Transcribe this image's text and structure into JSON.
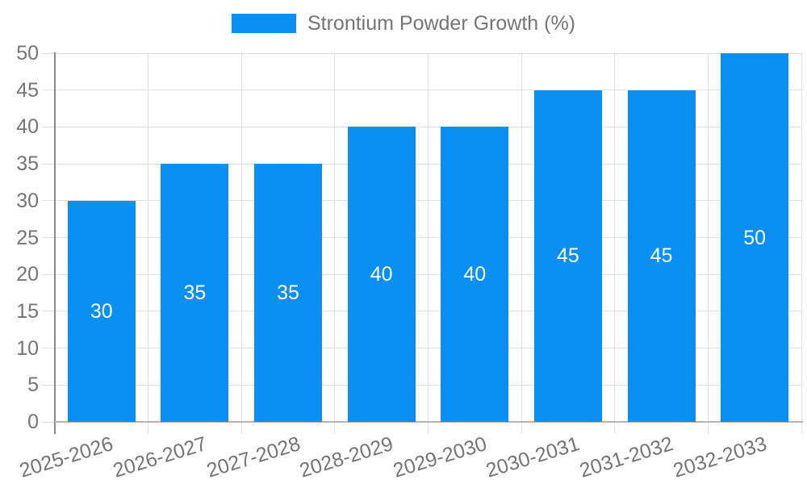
{
  "chart_data": {
    "type": "bar",
    "title": "Strontium Powder Growth (%)",
    "legend_entries": [
      "Strontium Powder Growth (%)"
    ],
    "legend_position": "top-center",
    "categories": [
      "2025-2026",
      "2026-2027",
      "2027-2028",
      "2028-2029",
      "2029-2030",
      "2030-2031",
      "2031-2032",
      "2032-2033"
    ],
    "values": [
      30,
      35,
      35,
      40,
      40,
      45,
      45,
      50
    ],
    "bar_value_labels": [
      "30",
      "35",
      "35",
      "40",
      "40",
      "45",
      "45",
      "50"
    ],
    "xlabel": "",
    "ylabel": "",
    "ylim": [
      0,
      50
    ],
    "yticks": [
      0,
      5,
      10,
      15,
      20,
      25,
      30,
      35,
      40,
      45,
      50
    ],
    "grid": true,
    "x_label_rotation_deg": -17,
    "colors": {
      "bar": "#0A8FF2",
      "grid": "#E0E0E0",
      "y_axis_line": "#8A8A8A",
      "x_axis_line": "#B5B5B5",
      "axis_text": "#757575",
      "value_label_text": "#FFFFFF",
      "background": "#FFFFFF"
    }
  }
}
